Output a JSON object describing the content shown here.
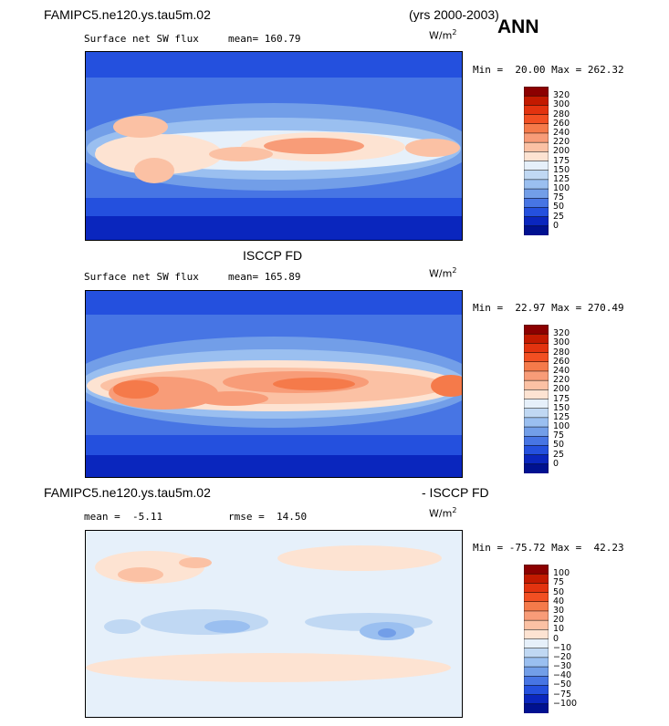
{
  "header": {
    "case_name": "FAMIPC5.ne120.ys.tau5m.02",
    "years": "(yrs 2000-2003)",
    "season": "ANN"
  },
  "chart_data": [
    {
      "type": "heatmap",
      "title": "",
      "variable": "Surface net SW flux",
      "mean_label": "mean=",
      "mean": "160.79",
      "units": "W/m",
      "units_exp": "2",
      "min_label": "Min =",
      "min": "20.00",
      "max_label": "Max =",
      "max": "262.32",
      "colorbar_levels": [
        "320",
        "300",
        "280",
        "260",
        "240",
        "220",
        "200",
        "175",
        "150",
        "125",
        "100",
        "75",
        "50",
        "25",
        "0"
      ],
      "colorbar_colors": [
        "#8c0000",
        "#c31a00",
        "#e3330f",
        "#f24f22",
        "#f57a4a",
        "#f89c78",
        "#fbc1a4",
        "#fde3d2",
        "#e6f0fa",
        "#c0d8f3",
        "#9abff0",
        "#729ee8",
        "#4775e4",
        "#2450de",
        "#0a26be",
        "#001190"
      ]
    },
    {
      "type": "heatmap",
      "title": "ISCCP FD",
      "variable": "Surface net SW flux",
      "mean_label": "mean=",
      "mean": "165.89",
      "units": "W/m",
      "units_exp": "2",
      "min_label": "Min =",
      "min": "22.97",
      "max_label": "Max =",
      "max": "270.49",
      "colorbar_levels": [
        "320",
        "300",
        "280",
        "260",
        "240",
        "220",
        "200",
        "175",
        "150",
        "125",
        "100",
        "75",
        "50",
        "25",
        "0"
      ],
      "colorbar_colors": [
        "#8c0000",
        "#c31a00",
        "#e3330f",
        "#f24f22",
        "#f57a4a",
        "#f89c78",
        "#fbc1a4",
        "#fde3d2",
        "#e6f0fa",
        "#c0d8f3",
        "#9abff0",
        "#729ee8",
        "#4775e4",
        "#2450de",
        "#0a26be",
        "#001190"
      ]
    },
    {
      "type": "heatmap",
      "title": "FAMIPC5.ne120.ys.tau5m.02",
      "title_right": "- ISCCP FD",
      "mean_label": "mean =",
      "mean": "-5.11",
      "rmse_label": "rmse =",
      "rmse": "14.50",
      "units": "W/m",
      "units_exp": "2",
      "min_label": "Min =",
      "min": "-75.72",
      "max_label": "Max =",
      "max": "42.23",
      "colorbar_levels": [
        "100",
        "75",
        "50",
        "40",
        "30",
        "20",
        "10",
        "0",
        "−10",
        "−20",
        "−30",
        "−40",
        "−50",
        "−75",
        "−100"
      ],
      "colorbar_colors": [
        "#8c0000",
        "#c31a00",
        "#e3330f",
        "#f24f22",
        "#f57a4a",
        "#f89c78",
        "#fbc1a4",
        "#fde3d2",
        "#e6f0fa",
        "#c0d8f3",
        "#9abff0",
        "#729ee8",
        "#4775e4",
        "#2450de",
        "#0a26be",
        "#001190"
      ]
    }
  ]
}
